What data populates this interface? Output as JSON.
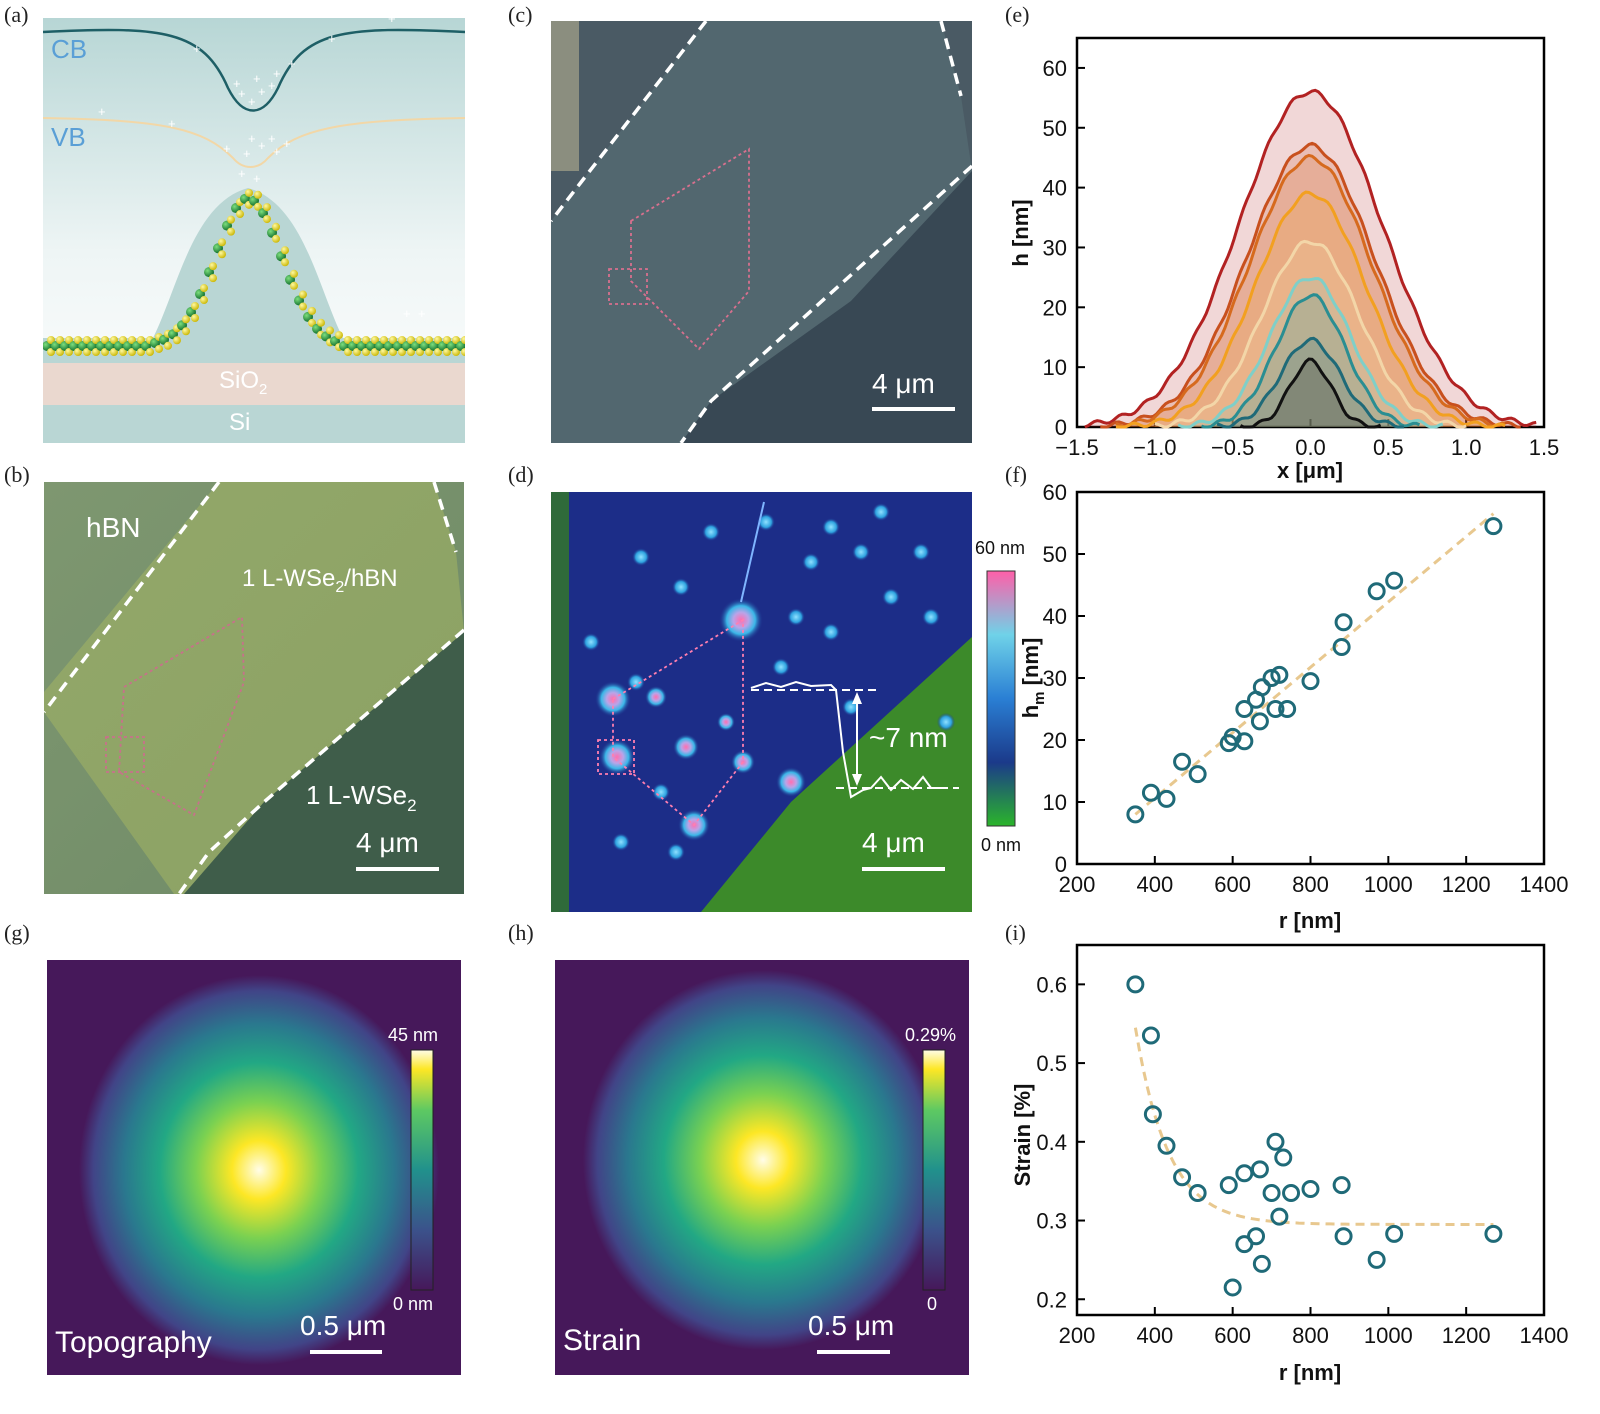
{
  "panel_labels": {
    "a": "(a)",
    "b": "(b)",
    "c": "(c)",
    "d": "(d)",
    "e": "(e)",
    "f": "(f)",
    "g": "(g)",
    "h": "(h)",
    "i": "(i)"
  },
  "panel_a": {
    "cb": "CB",
    "vb": "VB",
    "sio2": "SiO",
    "sio2_sub": "2",
    "si": "Si"
  },
  "panel_b": {
    "hbn": "hBN",
    "hetero_pre": "1 L-WSe",
    "hetero_sub": "2",
    "hetero_post": "/hBN",
    "mono_pre": "1 L-WSe",
    "mono_sub": "2",
    "scale": "4 μm"
  },
  "panel_c": {
    "scale": "4 μm"
  },
  "panel_d": {
    "step": "~7 nm",
    "scale": "4 μm",
    "cbar_max": "60 nm",
    "cbar_min": "0 nm"
  },
  "panel_g": {
    "title": "Topography",
    "scale": "0.5 μm",
    "cbar_max": "45 nm",
    "cbar_min": "0 nm"
  },
  "panel_h": {
    "title": "Strain",
    "scale": "0.5 μm",
    "cbar_max": "0.29%",
    "cbar_min": "0"
  },
  "colors": {
    "teal": "#1f6a78",
    "dashed_fit": "#e8c88f",
    "bg_map": "#46185a"
  },
  "chart_data": [
    {
      "id": "e",
      "type": "area",
      "xlabel": "x [μm]",
      "ylabel": "h [nm]",
      "xlim": [
        -1.5,
        1.5
      ],
      "ylim": [
        0,
        65
      ],
      "xticks": [
        "−1.5",
        "−1.0",
        "−0.5",
        "0.0",
        "0.5",
        "1.0",
        "1.5"
      ],
      "xtick_values": [
        -1.5,
        -1.0,
        -0.5,
        0.0,
        0.5,
        1.0,
        1.5
      ],
      "yticks": [
        0,
        10,
        20,
        30,
        40,
        50,
        60
      ],
      "series": [
        {
          "peak": 56,
          "width": 0.62,
          "extent": 1.45,
          "color": "#b22222"
        },
        {
          "peak": 47,
          "width": 0.55,
          "extent": 1.35,
          "color": "#c8501e"
        },
        {
          "peak": 45,
          "width": 0.53,
          "extent": 1.25,
          "color": "#d66a1e"
        },
        {
          "peak": 39,
          "width": 0.48,
          "extent": 1.25,
          "color": "#f2a020"
        },
        {
          "peak": 31,
          "width": 0.42,
          "extent": 1.0,
          "color": "#f3d6a8"
        },
        {
          "peak": 25,
          "width": 0.35,
          "extent": 0.85,
          "color": "#7fcfc8"
        },
        {
          "peak": 22,
          "width": 0.3,
          "extent": 0.7,
          "color": "#2a8e92"
        },
        {
          "peak": 14.5,
          "width": 0.26,
          "extent": 0.6,
          "color": "#1f6a78"
        },
        {
          "peak": 11,
          "width": 0.18,
          "extent": 0.45,
          "color": "#111111"
        }
      ]
    },
    {
      "id": "f",
      "type": "scatter",
      "xlabel": "r [nm]",
      "ylabel": "h",
      "ylabel_sub": "m",
      "ylabel_post": " [nm]",
      "xlim": [
        200,
        1400
      ],
      "ylim": [
        0,
        60
      ],
      "xticks": [
        200,
        400,
        600,
        800,
        1000,
        1200,
        1400
      ],
      "yticks": [
        0,
        10,
        20,
        30,
        40,
        50,
        60
      ],
      "x": [
        350,
        390,
        430,
        470,
        510,
        590,
        600,
        630,
        630,
        660,
        670,
        675,
        700,
        710,
        720,
        740,
        800,
        880,
        885,
        970,
        1015,
        1270
      ],
      "y": [
        8,
        11.5,
        10.5,
        16.5,
        14.5,
        19.5,
        20.5,
        19.8,
        25,
        26.5,
        23,
        28.5,
        30,
        25,
        30.5,
        25,
        29.5,
        35,
        39,
        44,
        45.7,
        54.5
      ],
      "fit": {
        "x": [
          350,
          1270
        ],
        "y": [
          8,
          56.5
        ]
      }
    },
    {
      "id": "i",
      "type": "scatter",
      "xlabel": "r [nm]",
      "ylabel": "Strain [%]",
      "xlim": [
        200,
        1400
      ],
      "ylim": [
        0.18,
        0.65
      ],
      "xticks": [
        200,
        400,
        600,
        800,
        1000,
        1200,
        1400
      ],
      "yticks": [
        0.2,
        0.3,
        0.4,
        0.5,
        0.6
      ],
      "x": [
        350,
        390,
        395,
        430,
        470,
        510,
        590,
        600,
        630,
        630,
        660,
        670,
        675,
        700,
        710,
        720,
        730,
        750,
        800,
        880,
        885,
        970,
        1015,
        1270
      ],
      "y": [
        0.6,
        0.535,
        0.435,
        0.395,
        0.355,
        0.335,
        0.345,
        0.215,
        0.27,
        0.36,
        0.28,
        0.365,
        0.245,
        0.335,
        0.4,
        0.305,
        0.38,
        0.335,
        0.34,
        0.345,
        0.28,
        0.25,
        0.283,
        0.283
      ],
      "fit": {
        "x": [
          350,
          1270
        ],
        "a": 0.295,
        "b": 0.25,
        "tau": 85
      }
    }
  ]
}
